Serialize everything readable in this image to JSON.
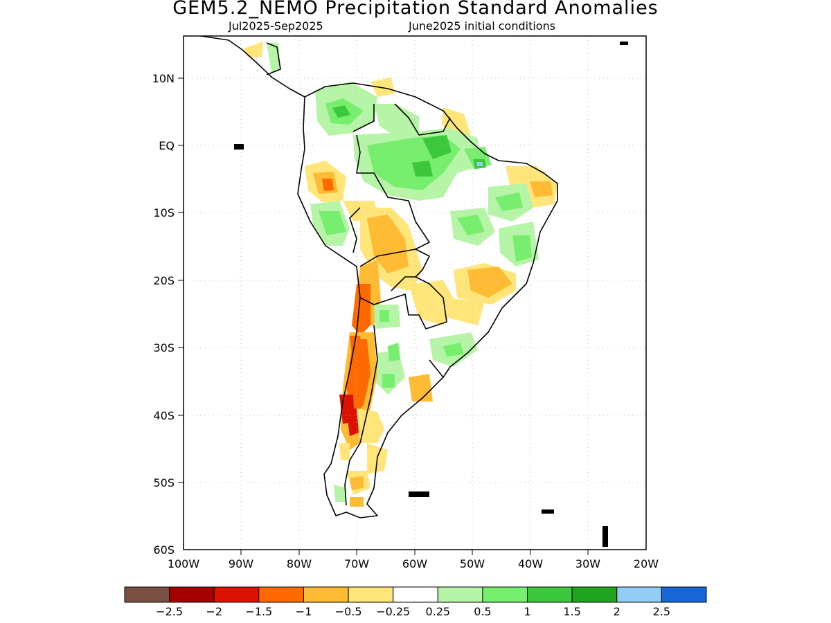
{
  "title": "GEM5.2_NEMO Precipitation Standard Anomalies",
  "subtitle_period": "Jul2025-Sep2025",
  "subtitle_init": "June2025 initial conditions",
  "lat_labels": [
    "10N",
    "EQ",
    "10S",
    "20S",
    "30S",
    "40S",
    "50S",
    "60S"
  ],
  "lon_labels": [
    "100W",
    "90W",
    "80W",
    "70W",
    "60W",
    "50W",
    "40W",
    "30W",
    "20W"
  ],
  "colorbar": {
    "colors": [
      "#7a5045",
      "#a50000",
      "#dd1100",
      "#ff6a00",
      "#ffbb33",
      "#ffe57a",
      "#ffffff",
      "#b6f5a8",
      "#78ee6e",
      "#3cc83c",
      "#1fa51f",
      "#93cdf6",
      "#1966d6"
    ],
    "tick_labels": [
      "-2.5",
      "-2",
      "-1.5",
      "-1",
      "-0.5",
      "-0.25",
      "0.25",
      "0.5",
      "1",
      "1.5",
      "2",
      "2.5"
    ]
  }
}
